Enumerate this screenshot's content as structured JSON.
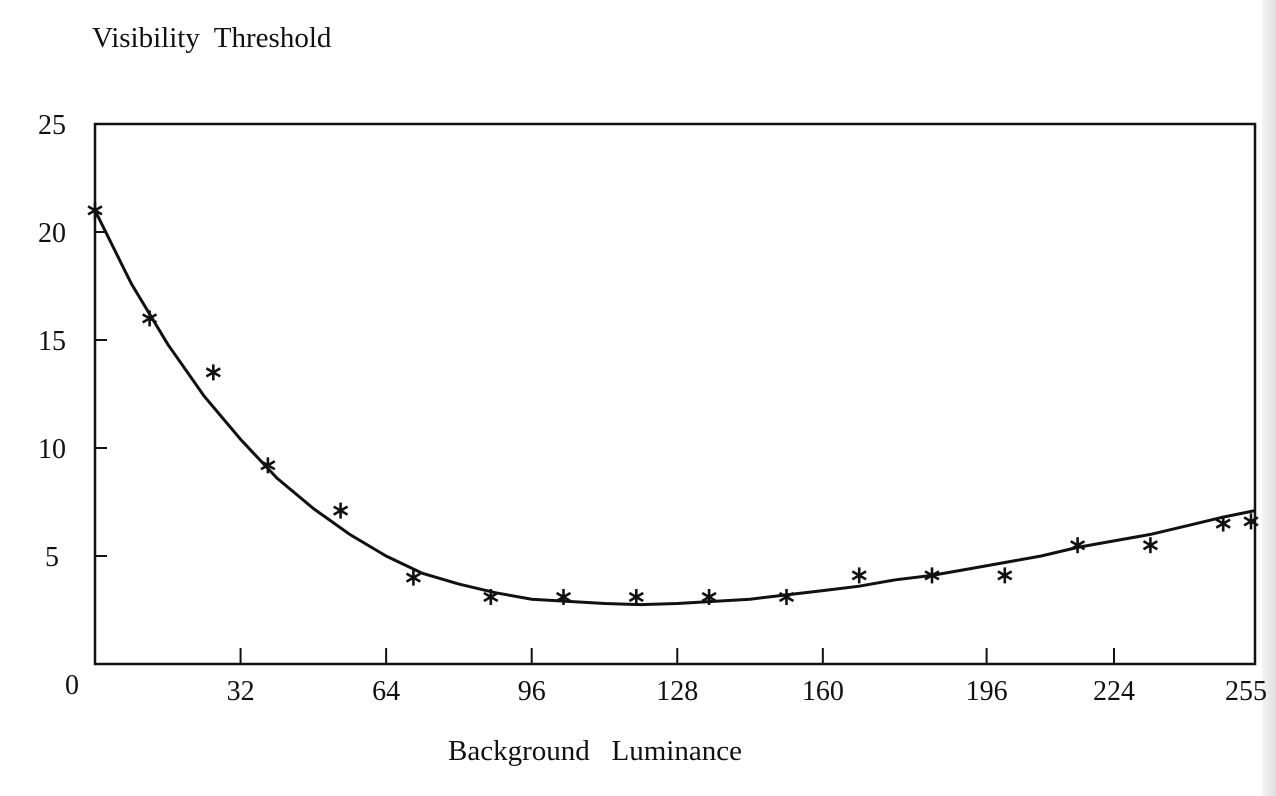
{
  "chart_data": {
    "type": "scatter",
    "title": "Visibility  Threshold",
    "xlabel": "Background   Luminance",
    "ylabel": "",
    "xlim": [
      0,
      255
    ],
    "ylim": [
      0,
      25
    ],
    "x_ticks": [
      32,
      64,
      96,
      128,
      160,
      196,
      224,
      255
    ],
    "y_ticks": [
      0,
      5,
      10,
      15,
      20,
      25
    ],
    "grid": false,
    "series": [
      {
        "marker": "*",
        "points": [
          [
            0,
            21
          ],
          [
            12,
            16
          ],
          [
            26,
            13.5
          ],
          [
            38,
            9.2
          ],
          [
            54,
            7.1
          ],
          [
            70,
            4
          ],
          [
            87,
            3.1
          ],
          [
            103,
            3.1
          ],
          [
            119,
            3.1
          ],
          [
            135,
            3.1
          ],
          [
            152,
            3.1
          ],
          [
            168,
            4.1
          ],
          [
            184,
            4.1
          ],
          [
            200,
            4.1
          ],
          [
            216,
            5.5
          ],
          [
            232,
            5.5
          ],
          [
            248,
            6.5
          ],
          [
            263,
            6.6
          ]
        ]
      },
      {
        "style": "line",
        "points": [
          [
            0,
            21
          ],
          [
            8,
            17.6
          ],
          [
            16,
            14.8
          ],
          [
            24,
            12.4
          ],
          [
            32,
            10.4
          ],
          [
            40,
            8.6
          ],
          [
            48,
            7.2
          ],
          [
            56,
            6.0
          ],
          [
            64,
            5.0
          ],
          [
            72,
            4.2
          ],
          [
            80,
            3.7
          ],
          [
            88,
            3.3
          ],
          [
            96,
            3.0
          ],
          [
            104,
            2.9
          ],
          [
            112,
            2.8
          ],
          [
            120,
            2.75
          ],
          [
            128,
            2.8
          ],
          [
            136,
            2.9
          ],
          [
            144,
            3.0
          ],
          [
            152,
            3.2
          ],
          [
            160,
            3.4
          ],
          [
            168,
            3.6
          ],
          [
            176,
            3.9
          ],
          [
            184,
            4.1
          ],
          [
            192,
            4.4
          ],
          [
            200,
            4.7
          ],
          [
            208,
            5.0
          ],
          [
            216,
            5.4
          ],
          [
            224,
            5.7
          ],
          [
            232,
            6.0
          ],
          [
            240,
            6.4
          ],
          [
            248,
            6.8
          ],
          [
            255,
            7.1
          ]
        ]
      }
    ]
  }
}
